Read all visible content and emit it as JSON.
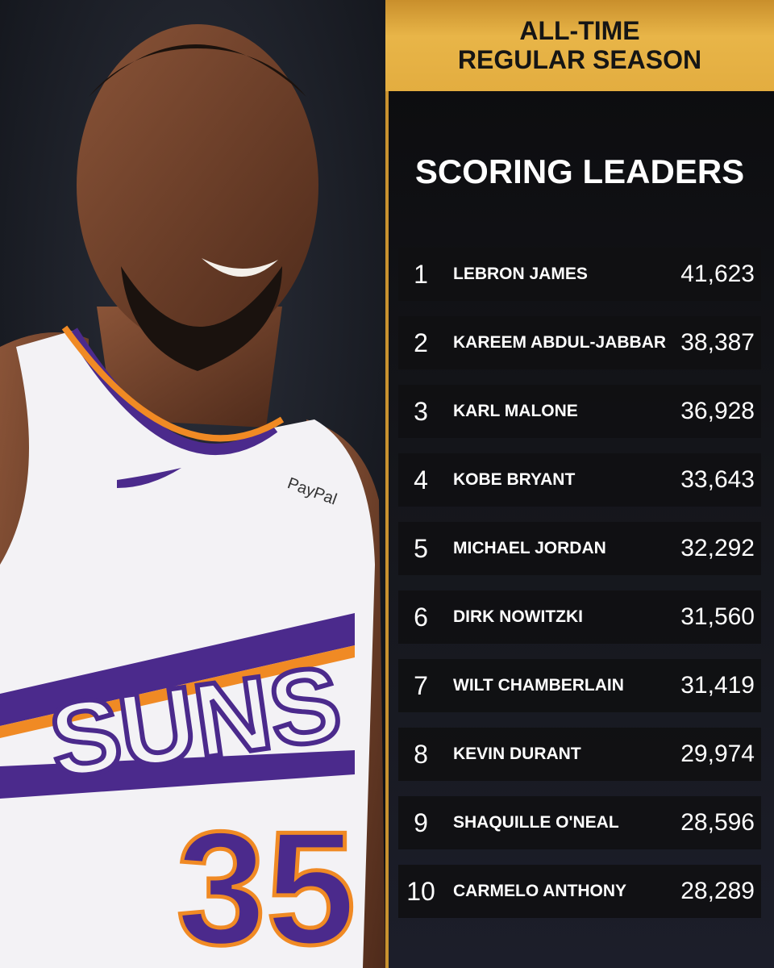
{
  "header": {
    "line1": "ALL-TIME",
    "line2": "REGULAR SEASON",
    "title": "SCORING LEADERS"
  },
  "colors": {
    "gold": "#e3ad40",
    "panel": "#0b0b0d",
    "row": "#101012",
    "jersey_purple": "#4b2a8c",
    "jersey_orange": "#f08a24"
  },
  "photo": {
    "jersey_wordmark": "SUNS",
    "jersey_number": "35",
    "sponsor": "PayPal"
  },
  "leaders": [
    {
      "rank": "1",
      "name": "LEBRON JAMES",
      "points": "41,623"
    },
    {
      "rank": "2",
      "name": "KAREEM ABDUL-JABBAR",
      "points": "38,387"
    },
    {
      "rank": "3",
      "name": "KARL MALONE",
      "points": "36,928"
    },
    {
      "rank": "4",
      "name": "KOBE BRYANT",
      "points": "33,643"
    },
    {
      "rank": "5",
      "name": "MICHAEL JORDAN",
      "points": "32,292"
    },
    {
      "rank": "6",
      "name": "DIRK NOWITZKI",
      "points": "31,560"
    },
    {
      "rank": "7",
      "name": "WILT CHAMBERLAIN",
      "points": "31,419"
    },
    {
      "rank": "8",
      "name": "KEVIN DURANT",
      "points": "29,974"
    },
    {
      "rank": "9",
      "name": "SHAQUILLE O'NEAL",
      "points": "28,596"
    },
    {
      "rank": "10",
      "name": "CARMELO ANTHONY",
      "points": "28,289"
    }
  ]
}
